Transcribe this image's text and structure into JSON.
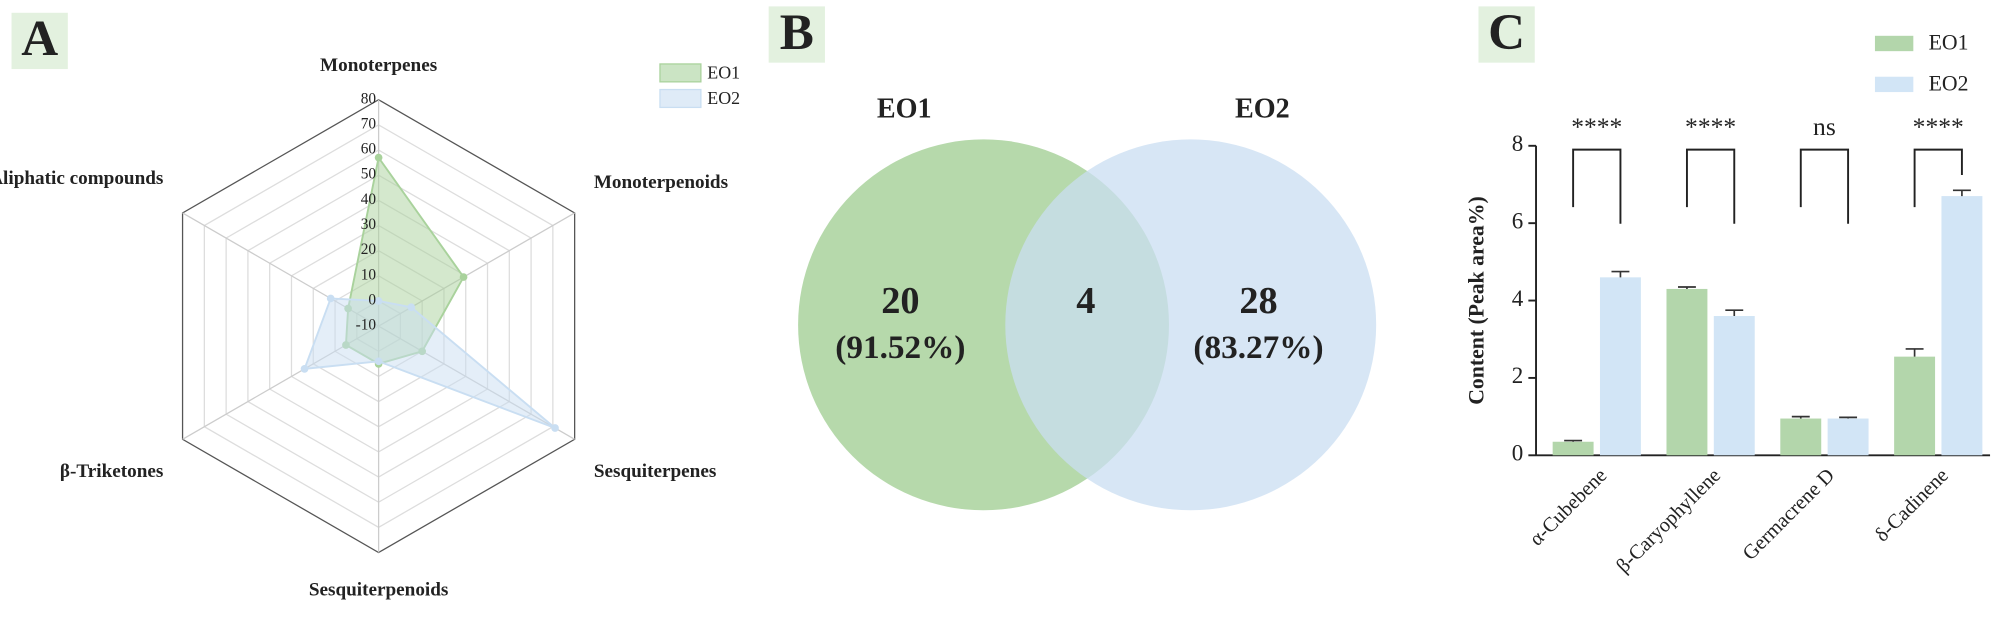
{
  "chart_data": [
    {
      "type": "radar",
      "panel_label": "A",
      "axes": [
        "Monoterpenes",
        "Monoterpenoids",
        "Sesquiterpenes",
        "Sesquiterpenoids",
        "β-Triketones",
        "Aliphatic compounds"
      ],
      "rlim": [
        -10,
        80
      ],
      "rticks": [
        -10,
        0,
        10,
        20,
        30,
        40,
        50,
        60,
        70,
        80
      ],
      "series": [
        {
          "name": "EO1",
          "color": "#a9d29c",
          "values": [
            57,
            29,
            10,
            5,
            5,
            4
          ]
        },
        {
          "name": "EO2",
          "color": "#c9def2",
          "values": [
            0,
            5,
            71,
            4,
            24,
            12
          ]
        }
      ]
    },
    {
      "type": "venn",
      "panel_label": "B",
      "sets": [
        {
          "name": "EO1",
          "color": "#a9d29c",
          "count": 20,
          "percent_label": "(91.52%)"
        },
        {
          "name": "EO2",
          "color": "#c9def2",
          "count": 28,
          "percent_label": "(83.27%)"
        }
      ],
      "intersection": 4
    },
    {
      "type": "bar",
      "panel_label": "C",
      "y_label": "Content (Peak area%)",
      "categories": [
        "α-Cubebene",
        "β-Caryophyllene",
        "Germacrene D",
        "δ-Cadinene"
      ],
      "series": [
        {
          "name": "EO1",
          "color": "#b3d6ab",
          "values": [
            0.35,
            4.3,
            0.95,
            2.55
          ],
          "errors": [
            0.03,
            0.05,
            0.05,
            0.2
          ]
        },
        {
          "name": "EO2",
          "color": "#d2e5f6",
          "values": [
            4.6,
            3.6,
            0.95,
            6.7
          ],
          "errors": [
            0.15,
            0.15,
            0.03,
            0.15
          ]
        }
      ],
      "significance": [
        "****",
        "****",
        "ns",
        "****"
      ],
      "ylim": [
        0,
        8
      ],
      "yticks": [
        0,
        2,
        4,
        6,
        8
      ]
    }
  ]
}
